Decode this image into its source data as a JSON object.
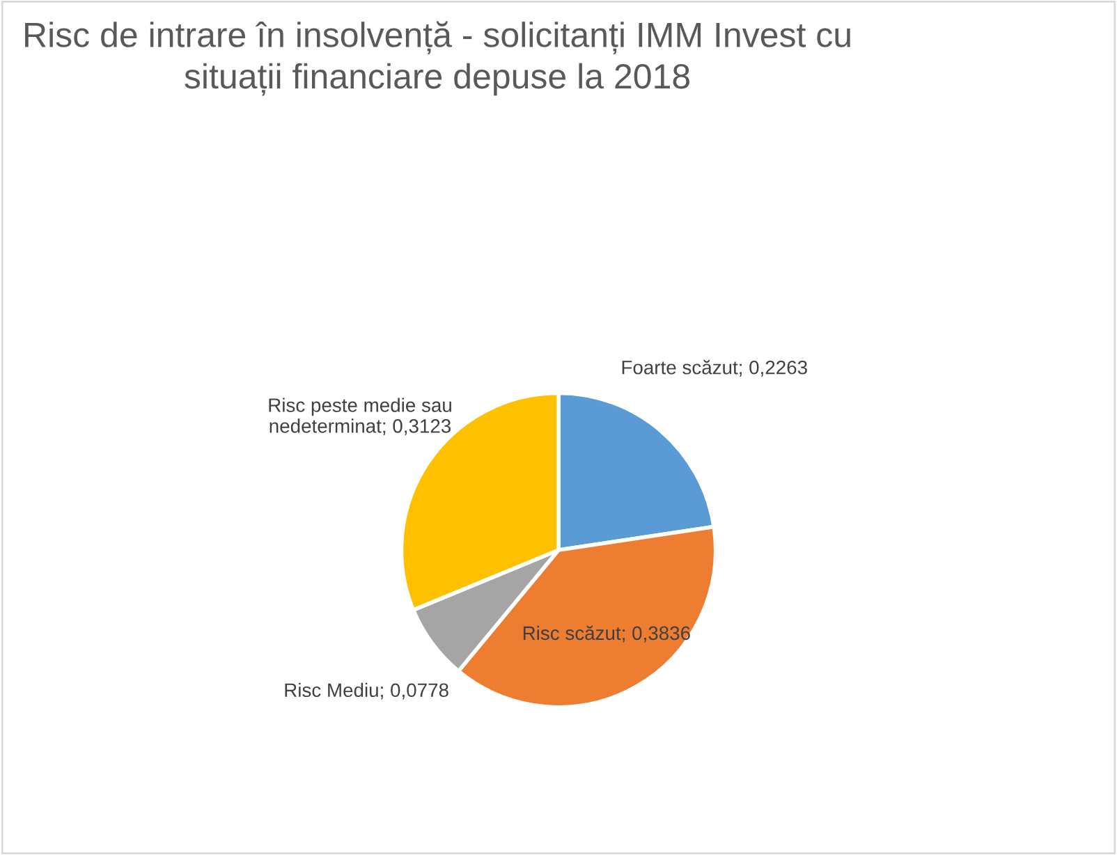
{
  "chart_data": {
    "type": "pie",
    "title": "Risc de intrare în insolvență - solicitanți IMM Invest cu\nsituații financiare depuse la 2018",
    "categories": [
      "Foarte scăzut",
      "Risc scăzut",
      "Risc Mediu",
      "Risc peste medie sau nedeterminat"
    ],
    "values": [
      0.2263,
      0.3836,
      0.0778,
      0.3123
    ],
    "value_labels": [
      "0,2263",
      "0,3836",
      "0,0778",
      "0,3123"
    ],
    "colors": [
      "#5b9bd5",
      "#ed7d31",
      "#a5a5a5",
      "#ffc000"
    ],
    "legend": false
  }
}
